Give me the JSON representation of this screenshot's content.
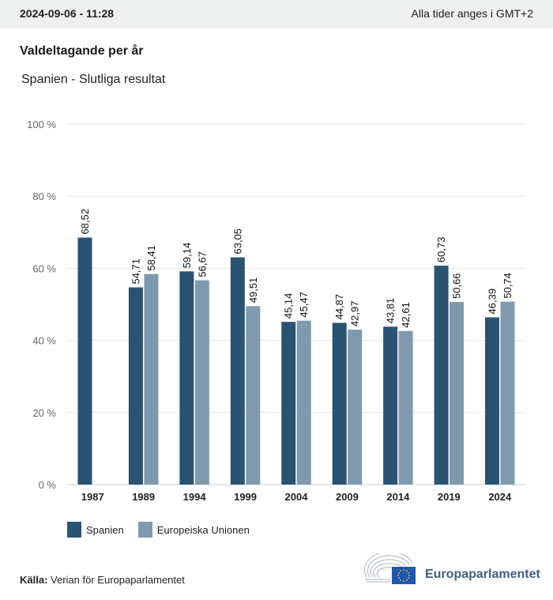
{
  "header": {
    "timestamp": "2024-09-06 - 11:28",
    "timezone_note": "Alla tider anges i GMT+2"
  },
  "title": "Valdeltagande per år",
  "subtitle": "Spanien - Slutliga resultat",
  "colors": {
    "spain": "#2a5372",
    "eu": "#7f9aae",
    "grid": "#e3e3e3",
    "axis": "#c8ccd0"
  },
  "legend": [
    {
      "name": "Spanien",
      "color": "#2a5372"
    },
    {
      "name": "Europeiska Unionen",
      "color": "#7f9aae"
    }
  ],
  "source": {
    "label": "Källa:",
    "text": "Verian för Europaparlamentet"
  },
  "logo": {
    "icon": "european-parliament-logo-icon",
    "text": "Europaparlamentet"
  },
  "chart_data": {
    "type": "bar",
    "title": "Valdeltagande per år",
    "subtitle": "Spanien - Slutliga resultat",
    "xlabel": "",
    "ylabel": "",
    "ylim": [
      0,
      100
    ],
    "yticks": [
      0,
      20,
      40,
      60,
      80,
      100
    ],
    "ytick_labels": [
      "0 %",
      "20 %",
      "40 %",
      "60 %",
      "80 %",
      "100 %"
    ],
    "grid": true,
    "legend_position": "bottom-left",
    "categories": [
      "1987",
      "1989",
      "1994",
      "1999",
      "2004",
      "2009",
      "2014",
      "2019",
      "2024"
    ],
    "series": [
      {
        "name": "Spanien",
        "values": [
          68.52,
          54.71,
          59.14,
          63.05,
          45.14,
          44.87,
          43.81,
          60.73,
          46.39
        ],
        "labels": [
          "68,52",
          "54,71",
          "59,14",
          "63,05",
          "45,14",
          "44,87",
          "43,81",
          "60,73",
          "46,39"
        ]
      },
      {
        "name": "Europeiska Unionen",
        "values": [
          null,
          58.41,
          56.67,
          49.51,
          45.47,
          42.97,
          42.61,
          50.66,
          50.74
        ],
        "labels": [
          null,
          "58,41",
          "56,67",
          "49,51",
          "45,47",
          "42,97",
          "42,61",
          "50,66",
          "50,74"
        ]
      }
    ]
  }
}
